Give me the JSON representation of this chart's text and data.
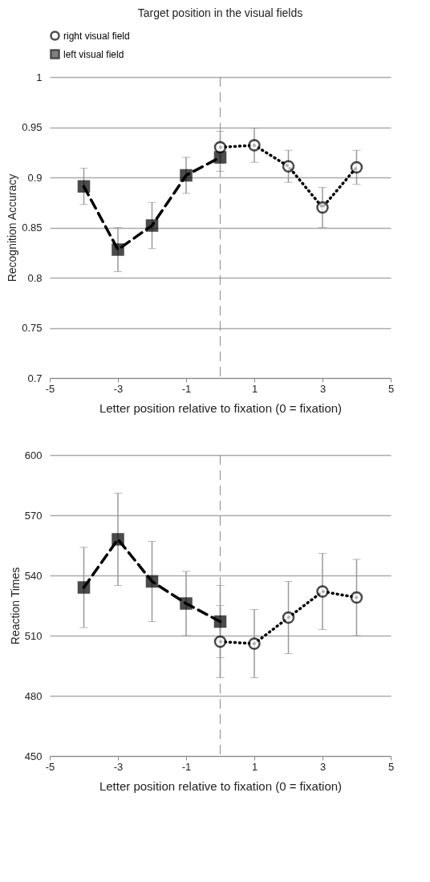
{
  "chart_data": [
    {
      "type": "line",
      "title": "Target position in the visual fields",
      "xlabel": "Letter position relative to fixation (0 = fixation)",
      "ylabel": "Recognition Accuracy",
      "xlim": [
        -5,
        5
      ],
      "xticks": [
        -5,
        -3,
        -1,
        1,
        3,
        5
      ],
      "ylim": [
        0.7,
        1
      ],
      "yticks": [
        0.7,
        0.75,
        0.8,
        0.85,
        0.9,
        0.95,
        1
      ],
      "grid": "y",
      "legend": "top",
      "ref_lines": [
        {
          "axis": "x",
          "value": 0,
          "color": "#999999",
          "line_style": "dashed"
        }
      ],
      "series": [
        {
          "name": "right visual field",
          "color": "#000000",
          "marker": "circle",
          "line_style": "dotted",
          "x": [
            0,
            1,
            2,
            3,
            4
          ],
          "values": [
            0.93,
            0.932,
            0.911,
            0.87,
            0.91
          ],
          "errors": [
            0.016,
            0.017,
            0.016,
            0.02,
            0.017
          ]
        },
        {
          "name": "left visual field",
          "color": "#000000",
          "marker": "square",
          "line_style": "dashed",
          "x": [
            -4,
            -3,
            -2,
            -1,
            0
          ],
          "values": [
            0.891,
            0.828,
            0.852,
            0.902,
            0.92
          ],
          "errors": [
            0.018,
            0.022,
            0.023,
            0.018,
            0.014
          ]
        }
      ]
    },
    {
      "type": "line",
      "xlabel": "Letter position relative to fixation (0 = fixation)",
      "ylabel": "Reaction Times",
      "xlim": [
        -5,
        5
      ],
      "xticks": [
        -5,
        -3,
        -1,
        1,
        3,
        5
      ],
      "ylim": [
        450,
        600
      ],
      "yticks": [
        450,
        480,
        510,
        540,
        570,
        600
      ],
      "grid": "y",
      "ref_lines": [
        {
          "axis": "x",
          "value": 0,
          "color": "#999999",
          "line_style": "dashed"
        }
      ],
      "series": [
        {
          "color": "#000000",
          "marker": "circle",
          "line_style": "dotted",
          "x": [
            0,
            1,
            2,
            3,
            4
          ],
          "values": [
            507,
            506,
            519,
            532,
            529
          ],
          "errors": [
            18,
            17,
            18,
            19,
            19
          ]
        },
        {
          "color": "#000000",
          "marker": "square",
          "line_style": "dashed",
          "x": [
            -4,
            -3,
            -2,
            -1,
            0
          ],
          "values": [
            534,
            558,
            537,
            526,
            517
          ],
          "errors": [
            20,
            23,
            20,
            16,
            18
          ]
        }
      ]
    }
  ]
}
